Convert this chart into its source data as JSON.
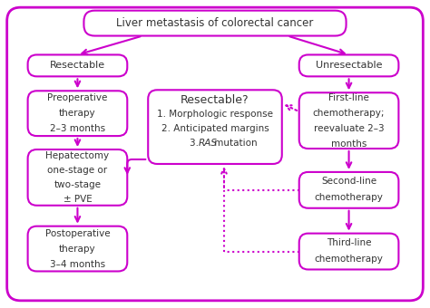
{
  "bg_color": "#ffffff",
  "border_color": "#cc00cc",
  "text_color": "#333333",
  "title_text": "Liver metastasis of colorectal cancer",
  "resectable_text": "Resectable",
  "unresectable_text": "Unresectable",
  "preop_text": "Preoperative\ntherapy\n2–3 months",
  "hepatectomy_text": "Hepatectomy\none-stage or\ntwo-stage\n± PVE",
  "postop_text": "Postoperative\ntherapy\n3–4 months",
  "resectable_q_line0": "Resectable?",
  "resectable_q_line1": "1. Morphologic response",
  "resectable_q_line2": "2. Anticipated margins",
  "resectable_q_line3_pre": "3. ",
  "resectable_q_line3_ras": "RAS",
  "resectable_q_line3_post": " mutation",
  "firstline_text": "First-line\nchemotherapy;\nreevaluate 2–3\nmonths",
  "secondline_text": "Second-line\nchemotherapy",
  "thirdline_text": "Third-line\nchemotherapy",
  "lw": 1.5
}
